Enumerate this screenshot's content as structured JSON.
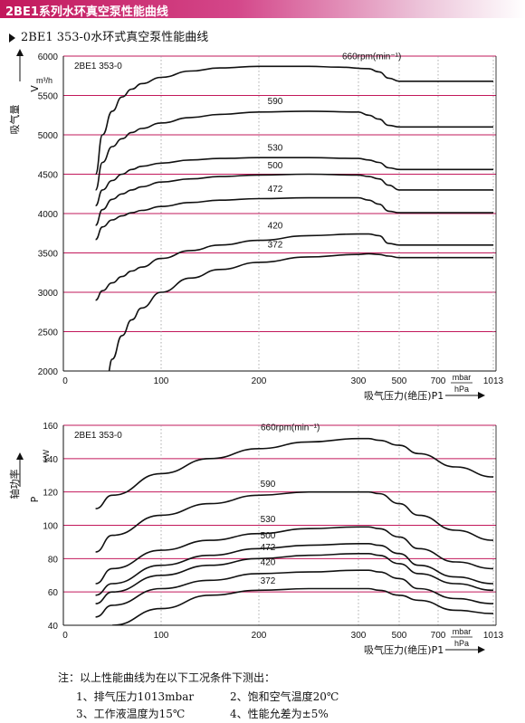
{
  "banner": {
    "title": "2BE1系列水环真空泵性能曲线"
  },
  "subtitle": "2BE1 353-0水环式真空泵性能曲线",
  "chart_data": [
    {
      "type": "line",
      "model_label": "2BE1 353-0",
      "ylabel": "吸气量",
      "ylabel_symbol": "V",
      "yunit": "m³/h",
      "xlabel": "吸气压力(绝压)P1",
      "xunit_top": "mbar",
      "xunit_bottom": "hPa",
      "ylim": [
        2000,
        6000
      ],
      "yticks": [
        2000,
        2500,
        3000,
        3500,
        4000,
        4500,
        5000,
        5500,
        6000
      ],
      "xticks": [
        0,
        100,
        200,
        300,
        500,
        700,
        1013
      ],
      "grid": "horizontal",
      "series": [
        {
          "name": "660rpm(min⁻¹)",
          "x": [
            33,
            40,
            50,
            60,
            70,
            80,
            100,
            130,
            160,
            200,
            250,
            280,
            350,
            400,
            450,
            500,
            600,
            800,
            1013
          ],
          "y": [
            4500,
            5000,
            5300,
            5480,
            5580,
            5650,
            5730,
            5810,
            5850,
            5870,
            5870,
            5860,
            5840,
            5800,
            5720,
            5680,
            5680,
            5680,
            5680
          ]
        },
        {
          "name": "590",
          "x": [
            33,
            40,
            50,
            60,
            70,
            80,
            100,
            130,
            160,
            200,
            250,
            300,
            350,
            400,
            450,
            500,
            600,
            800,
            1013
          ],
          "y": [
            4300,
            4650,
            4850,
            4950,
            5030,
            5080,
            5150,
            5220,
            5260,
            5290,
            5300,
            5290,
            5250,
            5200,
            5120,
            5100,
            5100,
            5100,
            5100
          ]
        },
        {
          "name": "530",
          "x": [
            33,
            40,
            50,
            60,
            70,
            80,
            100,
            130,
            160,
            200,
            250,
            300,
            350,
            400,
            450,
            500,
            600,
            800,
            1013
          ],
          "y": [
            4100,
            4300,
            4420,
            4500,
            4560,
            4600,
            4640,
            4680,
            4700,
            4710,
            4710,
            4700,
            4680,
            4650,
            4580,
            4560,
            4560,
            4560,
            4560
          ]
        },
        {
          "name": "500",
          "x": [
            33,
            40,
            50,
            60,
            70,
            80,
            100,
            130,
            160,
            200,
            250,
            300,
            350,
            400,
            450,
            500,
            600,
            800,
            1013
          ],
          "y": [
            3850,
            4050,
            4180,
            4250,
            4300,
            4340,
            4400,
            4440,
            4470,
            4490,
            4500,
            4490,
            4470,
            4440,
            4360,
            4300,
            4300,
            4300,
            4300
          ]
        },
        {
          "name": "472",
          "x": [
            33,
            40,
            50,
            60,
            70,
            80,
            100,
            130,
            160,
            200,
            250,
            300,
            350,
            400,
            450,
            500,
            600,
            800,
            1013
          ],
          "y": [
            3670,
            3830,
            3920,
            3970,
            4010,
            4040,
            4090,
            4140,
            4170,
            4190,
            4200,
            4200,
            4170,
            4120,
            4030,
            4010,
            4010,
            4010,
            4010
          ]
        },
        {
          "name": "420",
          "x": [
            33,
            40,
            50,
            60,
            70,
            80,
            100,
            130,
            160,
            200,
            250,
            300,
            350,
            400,
            450,
            500,
            600,
            800,
            1013
          ],
          "y": [
            2900,
            3020,
            3120,
            3200,
            3270,
            3320,
            3430,
            3530,
            3600,
            3660,
            3720,
            3740,
            3740,
            3720,
            3620,
            3600,
            3600,
            3600,
            3600
          ]
        },
        {
          "name": "372",
          "x": [
            45,
            50,
            60,
            70,
            80,
            100,
            130,
            160,
            200,
            250,
            300,
            350,
            400,
            450,
            500,
            600,
            800,
            1013
          ],
          "y": [
            1950,
            2150,
            2450,
            2650,
            2800,
            3000,
            3180,
            3290,
            3380,
            3450,
            3480,
            3490,
            3480,
            3460,
            3440,
            3440,
            3440,
            3440
          ]
        }
      ]
    },
    {
      "type": "line",
      "model_label": "2BE1 353-0",
      "ylabel": "轴功率",
      "ylabel_symbol": "P",
      "yunit": "kW",
      "xlabel": "吸气压力(绝压)P1",
      "xunit_top": "mbar",
      "xunit_bottom": "hPa",
      "ylim": [
        40,
        160
      ],
      "yticks": [
        40,
        60,
        80,
        100,
        120,
        140,
        160
      ],
      "xticks": [
        0,
        100,
        200,
        300,
        500,
        700,
        1013
      ],
      "grid": "horizontal",
      "series": [
        {
          "name": "660rpm(min⁻¹)",
          "x": [
            33,
            50,
            100,
            150,
            200,
            250,
            300,
            350,
            400,
            500,
            600,
            800,
            1013
          ],
          "y": [
            110,
            118,
            131,
            140,
            146,
            150,
            152,
            152,
            151,
            148,
            143,
            135,
            129
          ]
        },
        {
          "name": "590",
          "x": [
            33,
            50,
            100,
            150,
            200,
            250,
            300,
            350,
            400,
            500,
            600,
            800,
            1013
          ],
          "y": [
            84,
            94,
            106,
            113,
            118,
            120,
            120,
            120,
            119,
            113,
            106,
            97,
            91
          ]
        },
        {
          "name": "530",
          "x": [
            33,
            50,
            100,
            150,
            200,
            250,
            300,
            350,
            400,
            500,
            600,
            800,
            1013
          ],
          "y": [
            65,
            74,
            85,
            91,
            95,
            98,
            99,
            99,
            98,
            93,
            86,
            78,
            74
          ]
        },
        {
          "name": "500",
          "x": [
            33,
            50,
            100,
            150,
            200,
            250,
            300,
            350,
            400,
            500,
            600,
            800,
            1013
          ],
          "y": [
            58,
            65,
            76,
            82,
            86,
            88,
            89,
            89,
            88,
            83,
            76,
            69,
            65
          ]
        },
        {
          "name": "472",
          "x": [
            33,
            50,
            100,
            150,
            200,
            250,
            300,
            350,
            400,
            500,
            600,
            800,
            1013
          ],
          "y": [
            53,
            60,
            70,
            76,
            80,
            82,
            83,
            83,
            82,
            77,
            71,
            65,
            61
          ]
        },
        {
          "name": "420",
          "x": [
            33,
            50,
            100,
            150,
            200,
            250,
            300,
            350,
            400,
            500,
            600,
            800,
            1013
          ],
          "y": [
            45,
            52,
            62,
            67,
            71,
            72,
            73,
            73,
            72,
            68,
            62,
            56,
            53
          ]
        },
        {
          "name": "372",
          "x": [
            50,
            100,
            150,
            200,
            250,
            300,
            350,
            400,
            500,
            600,
            800,
            1013
          ],
          "y": [
            40,
            50,
            58,
            61,
            62,
            62,
            62,
            61,
            58,
            55,
            49,
            47
          ]
        }
      ]
    }
  ],
  "notes": {
    "heading": "注：以上性能曲线为在以下工况条件下测出：",
    "items": [
      "1、排气压力1013mbar",
      "2、饱和空气温度20℃",
      "3、工作液温度为15℃",
      "4、性能允差为±5%"
    ]
  },
  "colors": {
    "banner": "#c2185b",
    "grid": "#c2185b",
    "curve": "#111111"
  }
}
